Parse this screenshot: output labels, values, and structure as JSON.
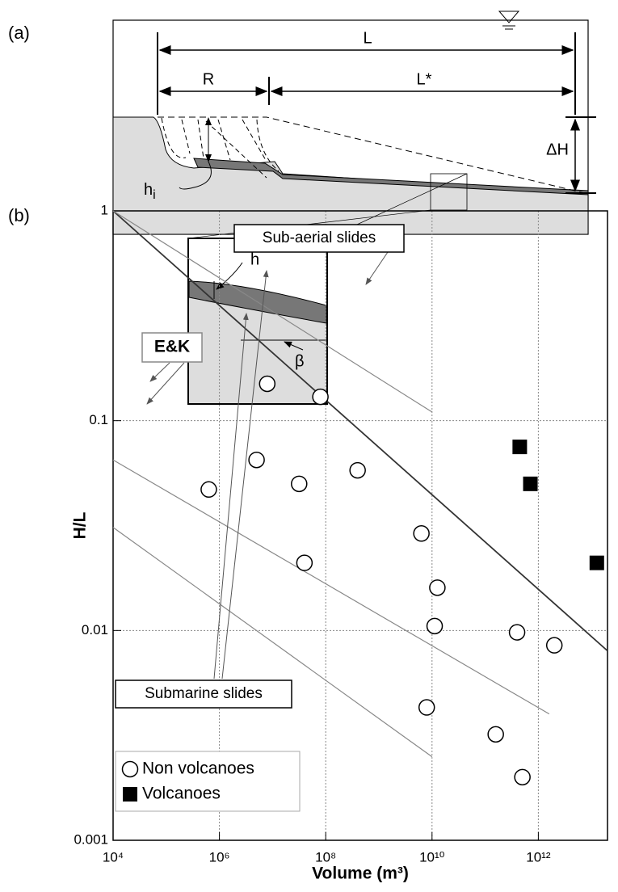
{
  "panel_a": {
    "label": "(a)",
    "L": "L",
    "R": "R",
    "L_star": "L*",
    "delta_H": "ΔH",
    "h_i": "h",
    "h_i_sub": "i",
    "h": "h",
    "beta": "β"
  },
  "chart_data": {
    "type": "scatter",
    "panel_label": "(b)",
    "x_label": "Volume (m³)",
    "y_label": "H/L",
    "log_x": true,
    "log_y": true,
    "grid": true,
    "xlim": [
      10000,
      20000000000000
    ],
    "ylim": [
      0.001,
      1
    ],
    "xticks": [
      {
        "value": 10000,
        "label": "10⁴"
      },
      {
        "value": 1000000,
        "label": "10⁶"
      },
      {
        "value": 100000000,
        "label": "10⁸"
      },
      {
        "value": 10000000000,
        "label": "10¹⁰"
      },
      {
        "value": 1000000000000,
        "label": "10¹²"
      }
    ],
    "yticks": [
      0.001,
      0.01,
      0.1,
      1
    ],
    "series": [
      {
        "name": "Non volcanoes",
        "marker": "circle",
        "color": "#000000",
        "x": [
          631000,
          5000000,
          7940000,
          31600000,
          39800000,
          79400000,
          398000000,
          6310000000,
          12600000000,
          11200000000,
          7940000000,
          158000000000,
          398000000000,
          501000000000,
          2000000000000
        ],
        "y": [
          0.047,
          0.065,
          0.15,
          0.05,
          0.021,
          0.13,
          0.058,
          0.029,
          0.016,
          0.0105,
          0.0043,
          0.0032,
          0.0098,
          0.002,
          0.0085
        ]
      },
      {
        "name": "Volcanoes",
        "marker": "square",
        "color": "#000000",
        "x": [
          447000000000,
          708000000000,
          12600000000000
        ],
        "y": [
          0.075,
          0.05,
          0.021
        ]
      }
    ],
    "lines": [
      {
        "color": "#333333",
        "x": [
          10000,
          20000000000000
        ],
        "y": [
          1,
          0.008
        ]
      },
      {
        "color": "#888888",
        "x": [
          10000,
          10000000000
        ],
        "y": [
          1,
          0.11
        ]
      },
      {
        "color": "#888888",
        "x": [
          10000,
          1600000000000
        ],
        "y": [
          0.065,
          0.004
        ]
      },
      {
        "color": "#888888",
        "x": [
          10000,
          10000000000
        ],
        "y": [
          0.031,
          0.0025
        ]
      }
    ],
    "annotations": [
      "Sub-aerial slides",
      "E&K",
      "Submarine slides"
    ]
  }
}
